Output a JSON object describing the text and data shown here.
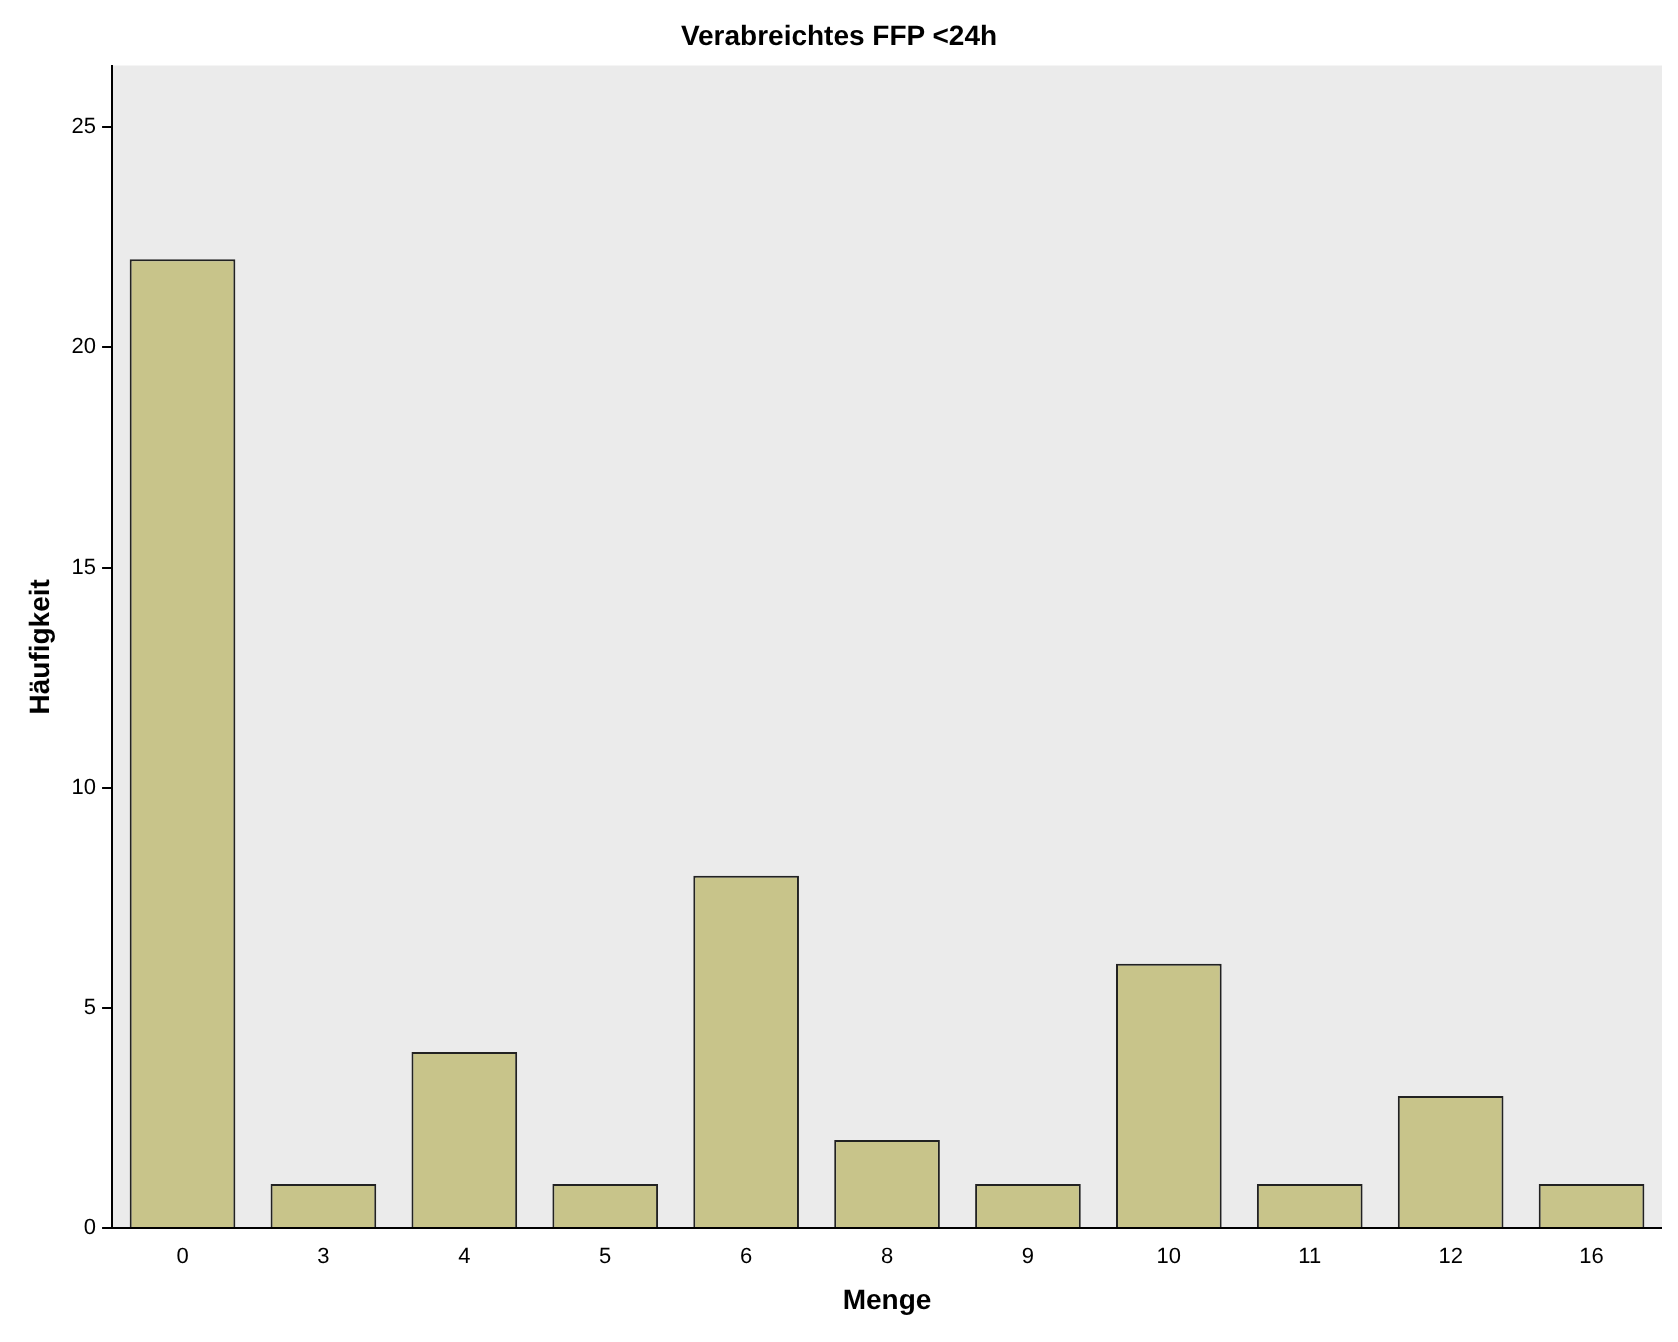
{
  "chart_data": {
    "type": "bar",
    "title": "Verabreichtes FFP <24h",
    "xlabel": "Menge",
    "ylabel": "Häufigkeit",
    "categories": [
      "0",
      "3",
      "4",
      "5",
      "6",
      "8",
      "9",
      "10",
      "11",
      "12",
      "16"
    ],
    "values": [
      22,
      1,
      4,
      1,
      8,
      2,
      1,
      6,
      1,
      3,
      1
    ],
    "color": "#c8c48a",
    "ylim": [
      0,
      26.4
    ],
    "yticks": [
      0,
      5,
      10,
      15,
      20,
      25
    ],
    "grid": false,
    "legend": false
  }
}
